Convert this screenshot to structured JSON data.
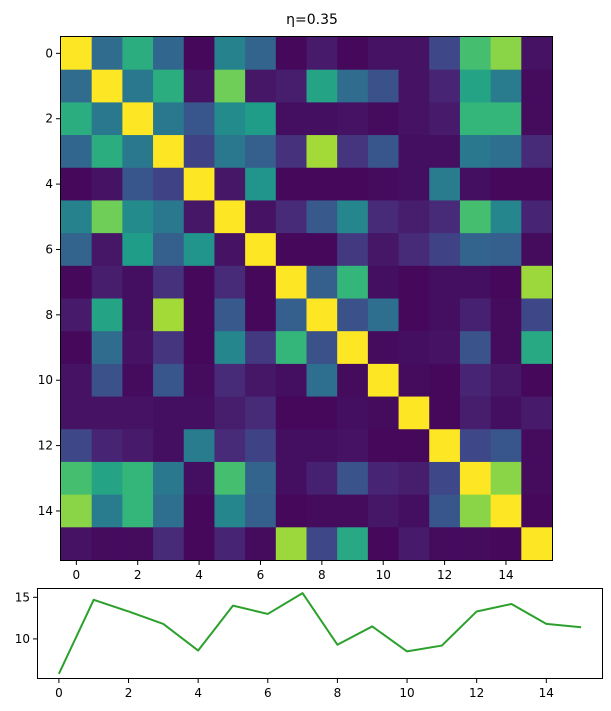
{
  "colors": {
    "line": "#2ca02c",
    "axis": "#000000",
    "viridis": [
      "#440154",
      "#482878",
      "#3e4989",
      "#31688e",
      "#26828e",
      "#1f9e89",
      "#35b779",
      "#6ece58",
      "#b5de2b",
      "#fde725"
    ]
  },
  "chart_data": [
    {
      "type": "heatmap",
      "title": "η=0.35",
      "xlabel": "",
      "ylabel": "",
      "x_ticks": [
        0,
        2,
        4,
        6,
        8,
        10,
        12,
        14
      ],
      "y_ticks": [
        0,
        2,
        4,
        6,
        8,
        10,
        12,
        14
      ],
      "colormap": "viridis",
      "vmin": 0,
      "vmax": 1,
      "values": [
        [
          1.0,
          0.35,
          0.62,
          0.33,
          0.02,
          0.45,
          0.32,
          0.02,
          0.07,
          0.02,
          0.05,
          0.05,
          0.22,
          0.7,
          0.82,
          0.05
        ],
        [
          0.35,
          1.0,
          0.4,
          0.62,
          0.05,
          0.78,
          0.06,
          0.08,
          0.58,
          0.35,
          0.25,
          0.05,
          0.1,
          0.58,
          0.42,
          0.03
        ],
        [
          0.62,
          0.4,
          1.0,
          0.4,
          0.27,
          0.48,
          0.55,
          0.04,
          0.04,
          0.05,
          0.03,
          0.05,
          0.07,
          0.66,
          0.66,
          0.03
        ],
        [
          0.33,
          0.62,
          0.4,
          1.0,
          0.2,
          0.4,
          0.3,
          0.14,
          0.86,
          0.15,
          0.27,
          0.04,
          0.04,
          0.4,
          0.36,
          0.12
        ],
        [
          0.02,
          0.05,
          0.27,
          0.2,
          1.0,
          0.06,
          0.52,
          0.02,
          0.02,
          0.02,
          0.03,
          0.04,
          0.42,
          0.04,
          0.02,
          0.02
        ],
        [
          0.45,
          0.78,
          0.48,
          0.4,
          0.06,
          1.0,
          0.05,
          0.12,
          0.28,
          0.46,
          0.12,
          0.08,
          0.12,
          0.7,
          0.46,
          0.1
        ],
        [
          0.32,
          0.06,
          0.55,
          0.3,
          0.52,
          0.05,
          1.0,
          0.02,
          0.02,
          0.17,
          0.06,
          0.12,
          0.2,
          0.32,
          0.3,
          0.03
        ],
        [
          0.02,
          0.08,
          0.04,
          0.14,
          0.02,
          0.12,
          0.02,
          1.0,
          0.3,
          0.66,
          0.04,
          0.02,
          0.04,
          0.04,
          0.02,
          0.85
        ],
        [
          0.07,
          0.58,
          0.04,
          0.86,
          0.02,
          0.28,
          0.02,
          0.3,
          1.0,
          0.25,
          0.36,
          0.02,
          0.04,
          0.09,
          0.03,
          0.22
        ],
        [
          0.02,
          0.35,
          0.05,
          0.15,
          0.02,
          0.46,
          0.17,
          0.66,
          0.25,
          1.0,
          0.03,
          0.04,
          0.05,
          0.26,
          0.03,
          0.6
        ],
        [
          0.05,
          0.25,
          0.03,
          0.27,
          0.03,
          0.12,
          0.06,
          0.04,
          0.36,
          0.03,
          1.0,
          0.03,
          0.02,
          0.1,
          0.06,
          0.02
        ],
        [
          0.05,
          0.05,
          0.05,
          0.04,
          0.04,
          0.08,
          0.12,
          0.02,
          0.02,
          0.04,
          0.03,
          1.0,
          0.02,
          0.08,
          0.04,
          0.07
        ],
        [
          0.22,
          0.1,
          0.07,
          0.04,
          0.42,
          0.12,
          0.2,
          0.04,
          0.04,
          0.05,
          0.02,
          0.02,
          1.0,
          0.22,
          0.27,
          0.03
        ],
        [
          0.7,
          0.58,
          0.66,
          0.4,
          0.04,
          0.7,
          0.32,
          0.04,
          0.09,
          0.26,
          0.1,
          0.08,
          0.22,
          1.0,
          0.82,
          0.03
        ],
        [
          0.82,
          0.42,
          0.66,
          0.36,
          0.02,
          0.46,
          0.3,
          0.02,
          0.03,
          0.03,
          0.06,
          0.04,
          0.27,
          0.82,
          1.0,
          0.02
        ],
        [
          0.05,
          0.03,
          0.03,
          0.12,
          0.02,
          0.1,
          0.03,
          0.85,
          0.22,
          0.6,
          0.02,
          0.07,
          0.03,
          0.03,
          0.02,
          1.0
        ]
      ]
    },
    {
      "type": "line",
      "title": "",
      "xlabel": "",
      "ylabel": "",
      "x": [
        0,
        1,
        2,
        3,
        4,
        5,
        6,
        7,
        8,
        9,
        10,
        11,
        12,
        13,
        14,
        15
      ],
      "y": [
        5.8,
        14.7,
        13.3,
        11.8,
        8.6,
        14.0,
        13.0,
        15.5,
        9.3,
        11.5,
        8.5,
        9.2,
        13.3,
        14.2,
        11.8,
        11.4
      ],
      "xlim": [
        -0.6,
        15.6
      ],
      "ylim": [
        5.3,
        16.0
      ],
      "x_ticks": [
        0,
        2,
        4,
        6,
        8,
        10,
        12,
        14
      ],
      "y_ticks": [
        10,
        15
      ],
      "grid": false
    }
  ]
}
